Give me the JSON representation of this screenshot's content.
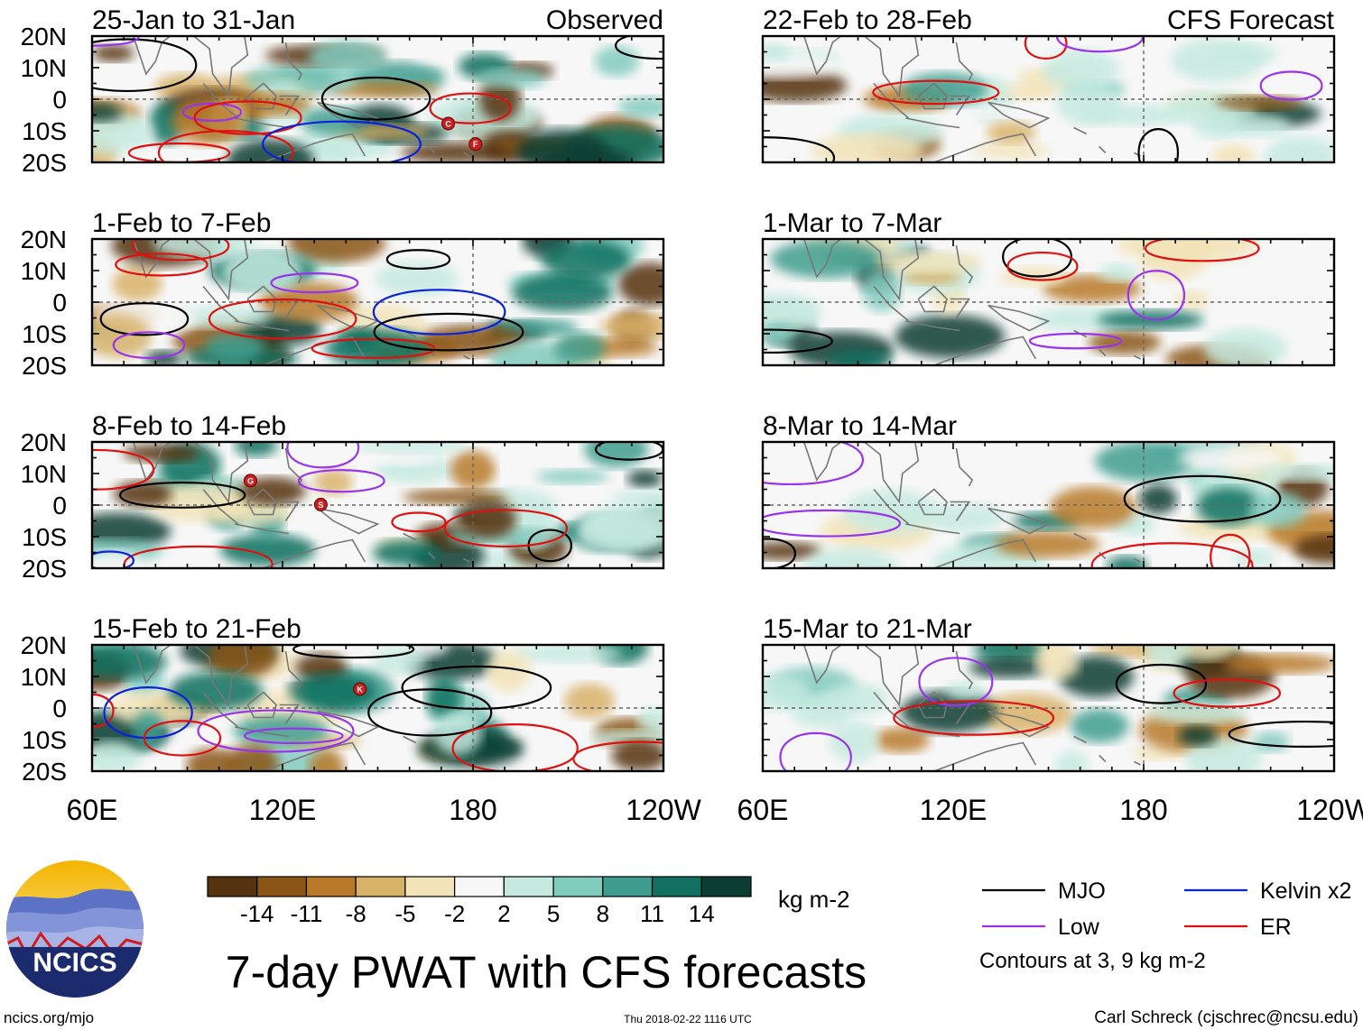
{
  "chart_data": {
    "type": "heatmap",
    "title": "7-day PWAT with CFS forecasts",
    "variable_units": "kg m-2",
    "x_ticks": [
      "60E",
      "120E",
      "180",
      "120W"
    ],
    "y_ticks": [
      "20N",
      "10N",
      "0",
      "10S",
      "20S"
    ],
    "xlim_deg": [
      60,
      240
    ],
    "ylim_deg": [
      -20,
      20
    ],
    "columns": [
      {
        "header": "Observed",
        "panels": [
          {
            "period": "25-Jan to 31-Jan",
            "storms": [
              "C",
              "F"
            ]
          },
          {
            "period": "1-Feb to 7-Feb",
            "storms": []
          },
          {
            "period": "8-Feb to 14-Feb",
            "storms": [
              "S",
              "G"
            ]
          },
          {
            "period": "15-Feb to 21-Feb",
            "storms": [
              "K"
            ]
          }
        ]
      },
      {
        "header": "CFS Forecast",
        "panels": [
          {
            "period": "22-Feb to 28-Feb",
            "storms": []
          },
          {
            "period": "1-Mar to 7-Mar",
            "storms": []
          },
          {
            "period": "8-Mar to 14-Mar",
            "storms": []
          },
          {
            "period": "15-Mar to 21-Mar",
            "storms": []
          }
        ]
      }
    ],
    "colorbar": {
      "labels": [
        "-14",
        "-11",
        "-8",
        "-5",
        "-2",
        "2",
        "5",
        "8",
        "11",
        "14"
      ],
      "colors": [
        "#553311",
        "#8a5517",
        "#b87a2a",
        "#d9b26a",
        "#f2e3b8",
        "#f7f7f7",
        "#c6eae0",
        "#82cbbf",
        "#3f9d8f",
        "#11705f",
        "#0b3d33"
      ],
      "units": "kg m-2"
    },
    "contour_legend": [
      {
        "label": "MJO",
        "color": "#000000"
      },
      {
        "label": "Kelvin x2",
        "color": "#0a22dd"
      },
      {
        "label": "Low",
        "color": "#9933ee"
      },
      {
        "label": "ER",
        "color": "#e01010"
      }
    ],
    "contour_note": "Contours at 3, 9 kg m-2"
  },
  "footer": {
    "logo_text": "NCICS",
    "url": "ncics.org/mjo",
    "timestamp": "Thu 2018-02-22 1116 UTC",
    "credit": "Carl Schreck (cjschrec@ncsu.edu)"
  }
}
